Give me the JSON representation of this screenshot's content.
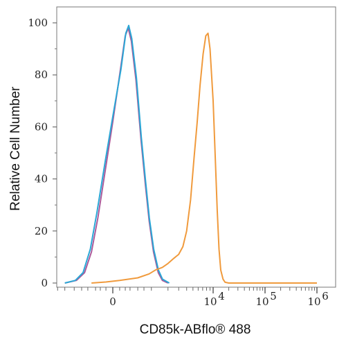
{
  "chart_data": {
    "type": "line",
    "xlabel": "CD85k-ABflo® 488",
    "ylabel": "Relative Cell Number",
    "xscale": "biexponential",
    "ylim": [
      0,
      100
    ],
    "yticks": [
      0,
      20,
      40,
      60,
      80,
      100
    ],
    "xticks": [
      {
        "value": 0,
        "base": "0",
        "exp": ""
      },
      {
        "value": 10000,
        "base": "10",
        "exp": "4"
      },
      {
        "value": 100000,
        "base": "10",
        "exp": "5"
      },
      {
        "value": 1000000,
        "base": "10",
        "exp": "6"
      }
    ],
    "grid": false,
    "legend": "none",
    "series": [
      {
        "color": "#ab5a9a",
        "points": [
          [
            -1500,
            0
          ],
          [
            -900,
            1
          ],
          [
            -600,
            4
          ],
          [
            -400,
            12
          ],
          [
            -250,
            25
          ],
          [
            -100,
            45
          ],
          [
            0,
            62
          ],
          [
            100,
            80
          ],
          [
            200,
            95
          ],
          [
            260,
            98
          ],
          [
            330,
            93
          ],
          [
            450,
            78
          ],
          [
            600,
            55
          ],
          [
            750,
            38
          ],
          [
            900,
            24
          ],
          [
            1100,
            12
          ],
          [
            1350,
            4
          ],
          [
            1600,
            1
          ],
          [
            2000,
            0
          ]
        ]
      },
      {
        "color": "#2aa7d6",
        "points": [
          [
            -1500,
            0
          ],
          [
            -950,
            1
          ],
          [
            -650,
            4
          ],
          [
            -430,
            13
          ],
          [
            -270,
            27
          ],
          [
            -110,
            47
          ],
          [
            0,
            64
          ],
          [
            120,
            82
          ],
          [
            210,
            96
          ],
          [
            270,
            99
          ],
          [
            340,
            94
          ],
          [
            460,
            79
          ],
          [
            610,
            56
          ],
          [
            760,
            39
          ],
          [
            910,
            25
          ],
          [
            1110,
            13
          ],
          [
            1360,
            5
          ],
          [
            1610,
            1.5
          ],
          [
            2100,
            0
          ]
        ]
      },
      {
        "color": "#f09a3c",
        "points": [
          [
            -400,
            0
          ],
          [
            -100,
            0.4
          ],
          [
            100,
            1
          ],
          [
            500,
            2
          ],
          [
            900,
            3.5
          ],
          [
            1200,
            5
          ],
          [
            1600,
            6
          ],
          [
            2000,
            7.5
          ],
          [
            2500,
            9.5
          ],
          [
            3000,
            11
          ],
          [
            3500,
            14
          ],
          [
            4000,
            20
          ],
          [
            4600,
            32
          ],
          [
            5200,
            48
          ],
          [
            5800,
            62
          ],
          [
            6400,
            76
          ],
          [
            7100,
            88
          ],
          [
            7800,
            95
          ],
          [
            8400,
            96
          ],
          [
            9000,
            90
          ],
          [
            10000,
            70
          ],
          [
            11000,
            48
          ],
          [
            12000,
            28
          ],
          [
            13000,
            13
          ],
          [
            14000,
            5
          ],
          [
            15500,
            1.5
          ],
          [
            17000,
            0.3
          ],
          [
            20000,
            0
          ],
          [
            1000000,
            0
          ]
        ]
      }
    ]
  }
}
